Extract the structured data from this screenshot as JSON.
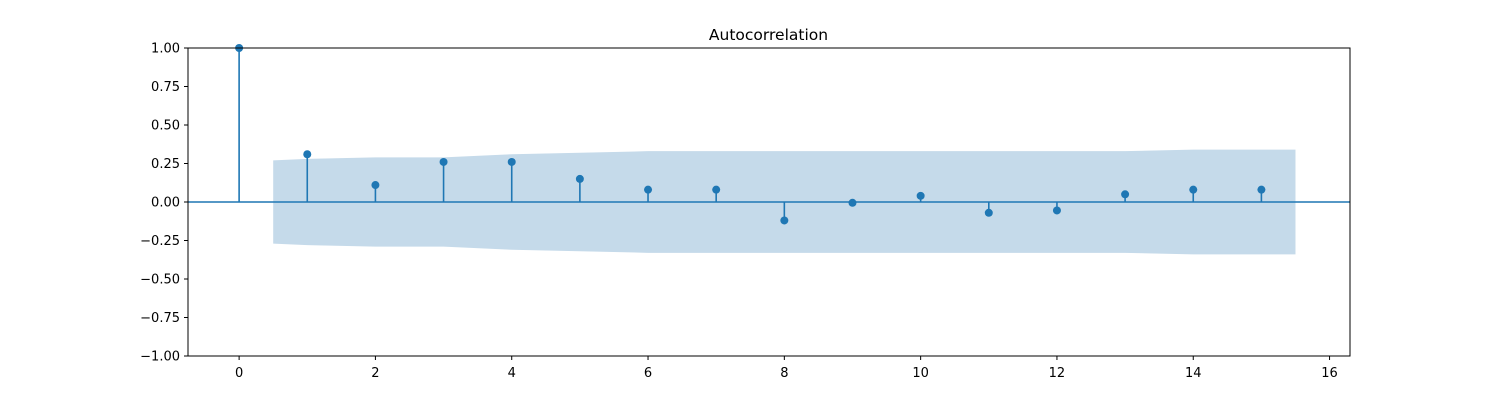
{
  "chart_data": {
    "type": "stem",
    "title": "Autocorrelation",
    "xlabel": "",
    "ylabel": "",
    "x": [
      0,
      1,
      2,
      3,
      4,
      5,
      6,
      7,
      8,
      9,
      10,
      11,
      12,
      13,
      14,
      15
    ],
    "values": [
      1.0,
      0.31,
      0.11,
      0.26,
      0.26,
      0.15,
      0.08,
      0.08,
      -0.12,
      -0.005,
      0.04,
      -0.07,
      -0.055,
      0.05,
      0.08,
      0.08
    ],
    "confidence_band": {
      "x": [
        0.5,
        1,
        2,
        3,
        4,
        5,
        6,
        7,
        8,
        9,
        10,
        11,
        12,
        13,
        14,
        15,
        15.5
      ],
      "upper": [
        0.27,
        0.28,
        0.29,
        0.29,
        0.31,
        0.32,
        0.33,
        0.33,
        0.33,
        0.33,
        0.33,
        0.33,
        0.33,
        0.33,
        0.34,
        0.34,
        0.34
      ],
      "lower": [
        -0.27,
        -0.28,
        -0.29,
        -0.29,
        -0.31,
        -0.32,
        -0.33,
        -0.33,
        -0.33,
        -0.33,
        -0.33,
        -0.33,
        -0.33,
        -0.33,
        -0.34,
        -0.34,
        -0.34
      ]
    },
    "xlim": [
      -0.75,
      16.3
    ],
    "ylim": [
      -1.0,
      1.0
    ],
    "xticks": [
      0,
      2,
      4,
      6,
      8,
      10,
      12,
      14,
      16
    ],
    "yticks": [
      1.0,
      0.75,
      0.5,
      0.25,
      0.0,
      -0.25,
      -0.5,
      -0.75,
      -1.0
    ],
    "ytick_labels": [
      "1.00",
      "0.75",
      "0.50",
      "0.25",
      "0.00",
      "−0.25",
      "−0.50",
      "−0.75",
      "−1.00"
    ],
    "xtick_labels": [
      "0",
      "2",
      "4",
      "6",
      "8",
      "10",
      "12",
      "14",
      "16"
    ],
    "grid": false,
    "colors": {
      "series": "#1f77b4",
      "band": "#c5daea"
    }
  }
}
